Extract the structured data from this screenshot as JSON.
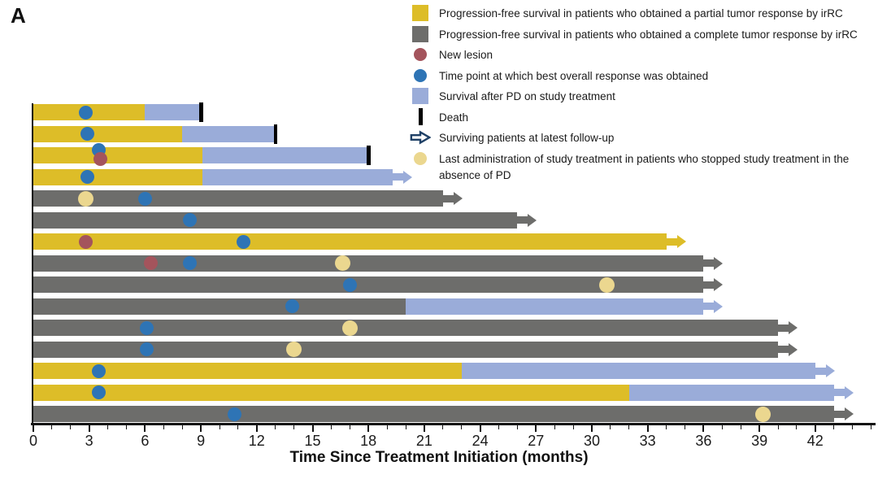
{
  "panel_label": "A",
  "chart_data": {
    "type": "swimmer",
    "title": "",
    "xlabel": "Time Since Treatment Initiation (months)",
    "x_ticks": [
      0,
      3,
      6,
      9,
      12,
      15,
      18,
      21,
      24,
      27,
      30,
      33,
      36,
      39,
      42
    ],
    "x_minor_step": 1,
    "x_max": 45.2,
    "colors": {
      "pfs_partial": "#DDBD28",
      "pfs_complete": "#6D6D6B",
      "post_pd": "#9AACD9",
      "best_response": "#2E74B5",
      "new_lesion": "#A4545C",
      "last_admin": "#EBD78F",
      "death": "#000000",
      "legend_arrow_outline": "#1F4066",
      "axis": "#111111"
    },
    "legend": [
      {
        "marker": "square",
        "color_key": "pfs_partial",
        "label": "Progression-free survival in patients who obtained a  partial tumor response by irRC"
      },
      {
        "marker": "square",
        "color_key": "pfs_complete",
        "label": "Progression-free survival in patients who obtained a  complete tumor response by irRC"
      },
      {
        "marker": "circle",
        "color_key": "new_lesion",
        "label": "New lesion"
      },
      {
        "marker": "circle",
        "color_key": "best_response",
        "label": "Time point at which best overall response was obtained"
      },
      {
        "marker": "square",
        "color_key": "post_pd",
        "label": "Survival after PD on study treatment"
      },
      {
        "marker": "death",
        "color_key": "death",
        "label": "Death"
      },
      {
        "marker": "arrow",
        "color_key": "legend_arrow_outline",
        "label": "Surviving patients at latest follow-up"
      },
      {
        "marker": "circle",
        "color_key": "last_admin",
        "label": "Last administration of study treatment in patients  who stopped study treatment in the absence of PD"
      }
    ],
    "patients": [
      {
        "segments": [
          {
            "type": "pfs_partial",
            "start": 0,
            "end": 6
          },
          {
            "type": "post_pd",
            "start": 6,
            "end": 9
          }
        ],
        "terminal": "death",
        "markers": [
          {
            "type": "best_response",
            "x": 2.8
          }
        ]
      },
      {
        "segments": [
          {
            "type": "pfs_partial",
            "start": 0,
            "end": 8
          },
          {
            "type": "post_pd",
            "start": 8,
            "end": 13
          }
        ],
        "terminal": "death",
        "markers": [
          {
            "type": "best_response",
            "x": 2.9
          }
        ]
      },
      {
        "segments": [
          {
            "type": "pfs_partial",
            "start": 0,
            "end": 9.1
          },
          {
            "type": "post_pd",
            "start": 9.1,
            "end": 18
          }
        ],
        "terminal": "death",
        "markers": [
          {
            "type": "best_response",
            "x": 3.5,
            "dy": -7
          },
          {
            "type": "new_lesion",
            "x": 3.6,
            "dy": 4
          }
        ]
      },
      {
        "segments": [
          {
            "type": "pfs_partial",
            "start": 0,
            "end": 9.1
          },
          {
            "type": "post_pd",
            "start": 9.1,
            "end": 19.3
          }
        ],
        "terminal": "arrow",
        "markers": [
          {
            "type": "best_response",
            "x": 2.9
          }
        ]
      },
      {
        "segments": [
          {
            "type": "pfs_complete",
            "start": 0,
            "end": 22
          }
        ],
        "terminal": "arrow",
        "markers": [
          {
            "type": "last_admin",
            "x": 2.8
          },
          {
            "type": "best_response",
            "x": 6
          }
        ]
      },
      {
        "segments": [
          {
            "type": "pfs_complete",
            "start": 0,
            "end": 26
          }
        ],
        "terminal": "arrow",
        "markers": [
          {
            "type": "best_response",
            "x": 8.4
          }
        ]
      },
      {
        "segments": [
          {
            "type": "pfs_partial",
            "start": 0,
            "end": 34
          }
        ],
        "terminal": "arrow",
        "markers": [
          {
            "type": "new_lesion",
            "x": 2.8
          },
          {
            "type": "best_response",
            "x": 11.3
          }
        ]
      },
      {
        "segments": [
          {
            "type": "pfs_complete",
            "start": 0,
            "end": 36
          }
        ],
        "terminal": "arrow",
        "markers": [
          {
            "type": "new_lesion",
            "x": 6.3
          },
          {
            "type": "best_response",
            "x": 8.4
          },
          {
            "type": "last_admin",
            "x": 16.6
          }
        ]
      },
      {
        "segments": [
          {
            "type": "pfs_complete",
            "start": 0,
            "end": 36
          }
        ],
        "terminal": "arrow",
        "markers": [
          {
            "type": "best_response",
            "x": 17
          },
          {
            "type": "last_admin",
            "x": 30.8
          }
        ]
      },
      {
        "segments": [
          {
            "type": "pfs_complete",
            "start": 0,
            "end": 20
          },
          {
            "type": "post_pd",
            "start": 20,
            "end": 36
          }
        ],
        "terminal": "arrow",
        "markers": [
          {
            "type": "best_response",
            "x": 13.9
          }
        ]
      },
      {
        "segments": [
          {
            "type": "pfs_complete",
            "start": 0,
            "end": 40
          }
        ],
        "terminal": "arrow",
        "markers": [
          {
            "type": "best_response",
            "x": 6.1
          },
          {
            "type": "last_admin",
            "x": 17
          }
        ]
      },
      {
        "segments": [
          {
            "type": "pfs_complete",
            "start": 0,
            "end": 40
          }
        ],
        "terminal": "arrow",
        "markers": [
          {
            "type": "best_response",
            "x": 6.1
          },
          {
            "type": "last_admin",
            "x": 14
          }
        ]
      },
      {
        "segments": [
          {
            "type": "pfs_partial",
            "start": 0,
            "end": 23
          },
          {
            "type": "post_pd",
            "start": 23,
            "end": 42
          }
        ],
        "terminal": "arrow",
        "markers": [
          {
            "type": "best_response",
            "x": 3.5
          }
        ]
      },
      {
        "segments": [
          {
            "type": "pfs_partial",
            "start": 0,
            "end": 32
          },
          {
            "type": "post_pd",
            "start": 32,
            "end": 43
          }
        ],
        "terminal": "arrow",
        "markers": [
          {
            "type": "best_response",
            "x": 3.5
          }
        ]
      },
      {
        "segments": [
          {
            "type": "pfs_complete",
            "start": 0,
            "end": 43
          }
        ],
        "terminal": "arrow",
        "markers": [
          {
            "type": "best_response",
            "x": 10.8
          },
          {
            "type": "last_admin",
            "x": 39.2
          }
        ]
      }
    ]
  }
}
